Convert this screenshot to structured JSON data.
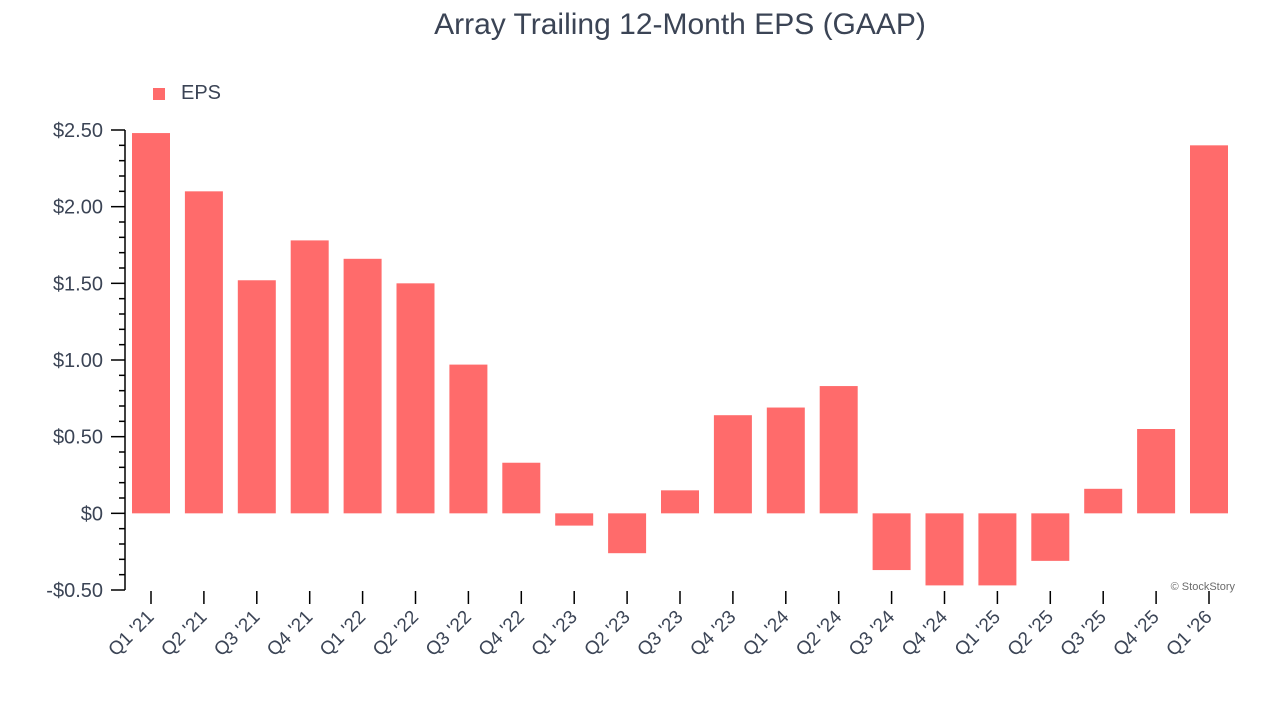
{
  "chart_data": {
    "type": "bar",
    "title": "Array Trailing 12-Month EPS (GAAP)",
    "xlabel": "",
    "ylabel": "",
    "categories": [
      "Q1 '21",
      "Q2 '21",
      "Q3 '21",
      "Q4 '21",
      "Q1 '22",
      "Q2 '22",
      "Q3 '22",
      "Q4 '22",
      "Q1 '23",
      "Q2 '23",
      "Q3 '23",
      "Q4 '23",
      "Q1 '24",
      "Q2 '24",
      "Q3 '24",
      "Q4 '24",
      "Q1 '25",
      "Q2 '25",
      "Q3 '25",
      "Q4 '25",
      "Q1 '26"
    ],
    "series": [
      {
        "name": "EPS",
        "color": "#ff6b6b",
        "values": [
          2.48,
          2.1,
          1.52,
          1.78,
          1.66,
          1.5,
          0.97,
          0.33,
          -0.08,
          -0.26,
          0.15,
          0.64,
          0.69,
          0.83,
          -0.37,
          -0.47,
          -0.47,
          -0.31,
          0.16,
          0.55,
          2.4
        ]
      }
    ],
    "ylim": [
      -0.5,
      2.5
    ],
    "yticks": [
      -0.5,
      0,
      0.5,
      1.0,
      1.5,
      2.0,
      2.5
    ],
    "ytick_labels": [
      "-$0.50",
      "$0",
      "$0.50",
      "$1.00",
      "$1.50",
      "$2.00",
      "$2.50"
    ],
    "grid": false,
    "legend": {
      "position": "top-left",
      "entries": [
        "EPS"
      ]
    }
  },
  "watermark": "© StockStory"
}
